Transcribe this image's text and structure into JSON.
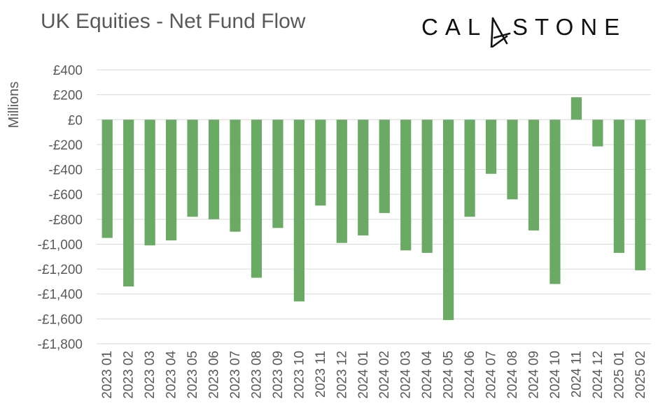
{
  "brand": {
    "text": "CALASTONE",
    "left_text": "CAL",
    "right_text": "STONE",
    "color": "#111111"
  },
  "chart_data": {
    "type": "bar",
    "title": "UK Equities - Net Fund Flow",
    "xlabel": "",
    "ylabel": "Millions",
    "ylim": [
      -1800,
      400
    ],
    "yticks": [
      400,
      200,
      0,
      -200,
      -400,
      -600,
      -800,
      -1000,
      -1200,
      -1400,
      -1600,
      -1800
    ],
    "ytick_labels": [
      "£400",
      "£200",
      "£0",
      "-£200",
      "-£400",
      "-£600",
      "-£800",
      "-£1,000",
      "-£1,200",
      "-£1,400",
      "-£1,600",
      "-£1,800"
    ],
    "grid": true,
    "legend": "none",
    "bar_color": "#6aaa64",
    "categories": [
      "2023 01",
      "2023 02",
      "2023 03",
      "2023 04",
      "2023 05",
      "2023 06",
      "2023 07",
      "2023 08",
      "2023 09",
      "2023 10",
      "2023 11",
      "2023 12",
      "2024 01",
      "2024 02",
      "2024 03",
      "2024 04",
      "2024 05",
      "2024 06",
      "2024 07",
      "2024 08",
      "2024 09",
      "2024 10",
      "2024 11",
      "2024 12",
      "2025 01",
      "2025 02"
    ],
    "values": [
      -950,
      -1340,
      -1010,
      -970,
      -780,
      -800,
      -900,
      -1270,
      -870,
      -1460,
      -690,
      -990,
      -930,
      -750,
      -1050,
      -1070,
      -1610,
      -780,
      -435,
      -640,
      -890,
      -1320,
      180,
      -215,
      -1070,
      -1210
    ]
  }
}
